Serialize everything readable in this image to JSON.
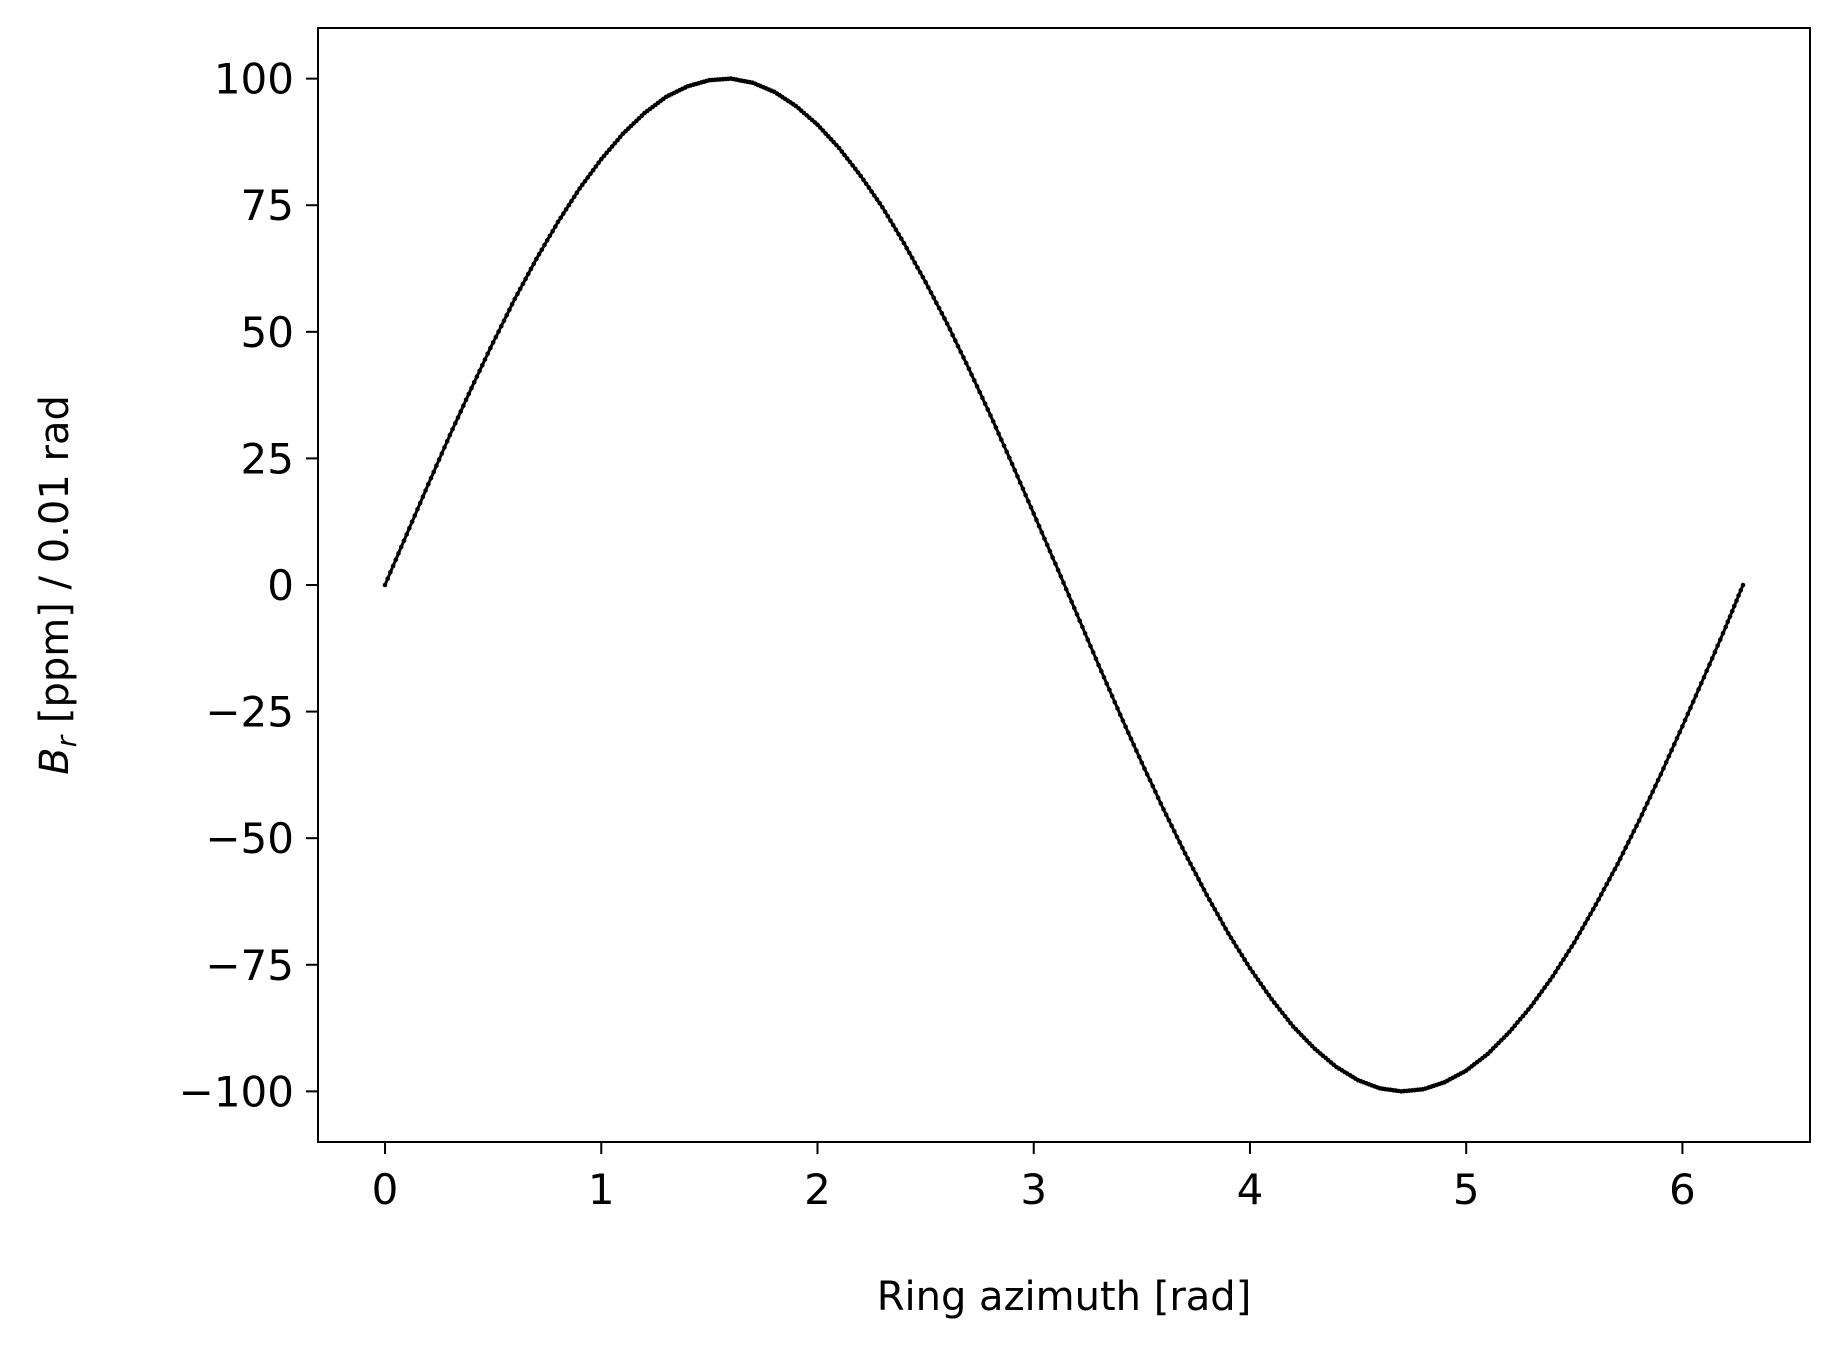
{
  "chart_data": {
    "type": "scatter",
    "title": "",
    "xlabel": "Ring azimuth [rad]",
    "ylabel_main": "B",
    "ylabel_sub": "r",
    "ylabel_rest": " [ppm] / 0.01 rad",
    "xlim": [
      -0.31,
      6.59
    ],
    "ylim": [
      -110,
      110
    ],
    "xticks": [
      0,
      1,
      2,
      3,
      4,
      5,
      6
    ],
    "yticks": [
      100,
      75,
      50,
      25,
      0,
      -25,
      -50,
      -75,
      -100
    ],
    "xtick_labels": [
      "0",
      "1",
      "2",
      "3",
      "4",
      "5",
      "6"
    ],
    "ytick_labels": [
      "100",
      "75",
      "50",
      "25",
      "0",
      "−25",
      "−50",
      "−75",
      "−100"
    ],
    "grid": false,
    "marker_color": "#000000",
    "series": [
      {
        "x": [
          0,
          0.1,
          0.2,
          0.3,
          0.4,
          0.5,
          0.6,
          0.7,
          0.8,
          0.9,
          1.0,
          1.1,
          1.2,
          1.3,
          1.4,
          1.5,
          1.6,
          1.7,
          1.8,
          1.9,
          2.0,
          2.1,
          2.2,
          2.3,
          2.4,
          2.5,
          2.6,
          2.7,
          2.8,
          2.9,
          3.0,
          3.1,
          3.2,
          3.3,
          3.4,
          3.5,
          3.6,
          3.7,
          3.8,
          3.9,
          4.0,
          4.1,
          4.2,
          4.3,
          4.4,
          4.5,
          4.6,
          4.7,
          4.8,
          4.9,
          5.0,
          5.1,
          5.2,
          5.3,
          5.4,
          5.5,
          5.6,
          5.7,
          5.8,
          5.9,
          6.0,
          6.1,
          6.2,
          6.28
        ],
        "y": [
          0,
          10.0,
          19.9,
          29.6,
          38.9,
          47.9,
          56.5,
          64.4,
          71.7,
          78.3,
          84.1,
          89.1,
          93.2,
          96.4,
          98.5,
          99.7,
          100.0,
          99.2,
          97.4,
          94.6,
          90.9,
          86.3,
          80.8,
          74.6,
          67.5,
          59.8,
          51.6,
          42.7,
          33.5,
          23.9,
          14.1,
          4.2,
          -5.8,
          -15.8,
          -25.6,
          -35.1,
          -44.3,
          -53.0,
          -61.2,
          -68.8,
          -75.7,
          -81.8,
          -87.2,
          -91.6,
          -95.2,
          -97.8,
          -99.4,
          -100.0,
          -99.6,
          -98.2,
          -95.9,
          -92.6,
          -88.3,
          -83.2,
          -77.3,
          -70.6,
          -63.1,
          -55.1,
          -46.5,
          -37.4,
          -27.9,
          -18.2,
          -8.3,
          0
        ]
      }
    ]
  }
}
